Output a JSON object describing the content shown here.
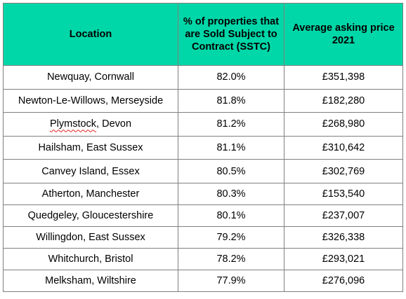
{
  "table": {
    "headers": [
      "Location",
      "% of properties that are Sold Subject to Contract (SSTC)",
      "Average asking price 2021"
    ],
    "rows": [
      {
        "location": "Newquay, Cornwall",
        "sstc": "82.0%",
        "price": "£351,398"
      },
      {
        "location": "Newton-Le-Willows, Merseyside",
        "sstc": "81.8%",
        "price": "£182,280"
      },
      {
        "location_a": "Plymstock",
        "location_b": ", Devon",
        "sstc": "81.2%",
        "price": "£268,980"
      },
      {
        "location": "Hailsham, East Sussex",
        "sstc": "81.1%",
        "price": "£310,642"
      },
      {
        "location": "Canvey Island, Essex",
        "sstc": "80.5%",
        "price": "£302,769"
      },
      {
        "location": "Atherton, Manchester",
        "sstc": "80.3%",
        "price": "£153,540"
      },
      {
        "location": "Quedgeley, Gloucestershire",
        "sstc": "80.1%",
        "price": "£237,007"
      },
      {
        "location": "Willingdon, East Sussex",
        "sstc": "79.2%",
        "price": "£326,338"
      },
      {
        "location": "Whitchurch, Bristol",
        "sstc": "78.2%",
        "price": "£293,021"
      },
      {
        "location": "Melksham, Wiltshire",
        "sstc": "77.9%",
        "price": "£276,096"
      }
    ],
    "colors": {
      "header_background": "#00d7a8",
      "border": "#7f7f7f"
    }
  }
}
